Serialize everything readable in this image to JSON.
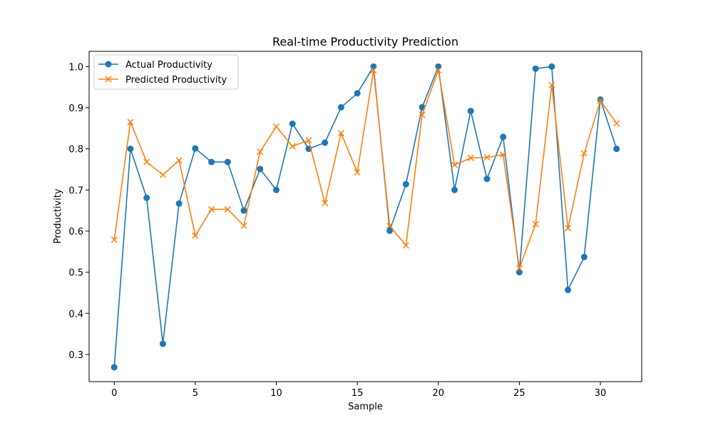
{
  "chart_data": {
    "type": "line",
    "title": "Real-time Productivity Prediction",
    "xlabel": "Sample",
    "ylabel": "Productivity",
    "xlim": [
      -1.55,
      32.55
    ],
    "ylim": [
      0.234,
      1.037
    ],
    "xticks": [
      0,
      5,
      10,
      15,
      20,
      25,
      30
    ],
    "yticks": [
      0.3,
      0.4,
      0.5,
      0.6,
      0.7,
      0.8,
      0.9,
      1.0
    ],
    "ytick_labels": [
      "0.3",
      "0.4",
      "0.5",
      "0.6",
      "0.7",
      "0.8",
      "0.9",
      "1.0"
    ],
    "grid": false,
    "legend_position": "top-left",
    "x": [
      0,
      1,
      2,
      3,
      4,
      5,
      6,
      7,
      8,
      9,
      10,
      11,
      12,
      13,
      14,
      15,
      16,
      17,
      18,
      19,
      20,
      21,
      22,
      23,
      24,
      25,
      26,
      27,
      28,
      29,
      30,
      31
    ],
    "series": [
      {
        "name": "Actual Productivity",
        "color": "#1f77b4",
        "marker": "circle",
        "values": [
          0.269,
          0.8,
          0.681,
          0.326,
          0.667,
          0.801,
          0.768,
          0.768,
          0.65,
          0.751,
          0.7,
          0.861,
          0.8,
          0.815,
          0.901,
          0.935,
          1.0,
          0.601,
          0.714,
          0.901,
          1.0,
          0.7,
          0.892,
          0.727,
          0.829,
          0.5,
          0.995,
          1.0,
          0.457,
          0.537,
          0.92,
          0.8
        ]
      },
      {
        "name": "Predicted Productivity",
        "color": "#ff7f0e",
        "marker": "x",
        "values": [
          0.579,
          0.865,
          0.768,
          0.737,
          0.772,
          0.589,
          0.653,
          0.653,
          0.613,
          0.793,
          0.854,
          0.806,
          0.821,
          0.668,
          0.838,
          0.743,
          0.991,
          0.613,
          0.565,
          0.883,
          0.991,
          0.761,
          0.778,
          0.779,
          0.786,
          0.51,
          0.617,
          0.955,
          0.607,
          0.789,
          0.917,
          0.862
        ]
      }
    ]
  }
}
